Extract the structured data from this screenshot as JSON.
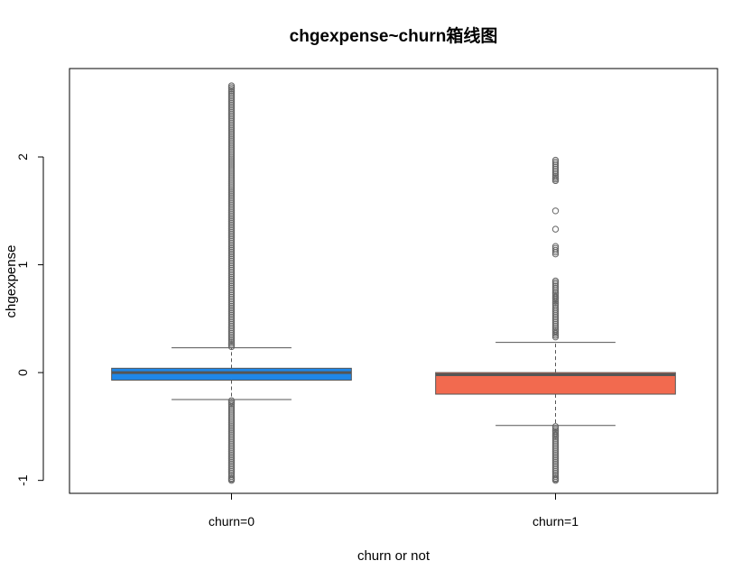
{
  "chart_data": {
    "type": "boxplot",
    "title": "chgexpense~churn箱线图",
    "xlabel": "churn or not",
    "ylabel": "chgexpense",
    "categories": [
      "churn=0",
      "churn=1"
    ],
    "ylim": [
      -1.12,
      2.82
    ],
    "yticks": [
      -1,
      0,
      1,
      2
    ],
    "grid": false,
    "legend": "none",
    "boxes": [
      {
        "label": "churn=0",
        "color": "#1f87e8",
        "q1": -0.07,
        "median": 0.0,
        "q3": 0.04,
        "whisker_low": -0.25,
        "whisker_high": 0.23,
        "outliers_high": [
          0.24,
          0.3,
          0.4,
          0.5,
          0.6,
          0.7,
          0.8,
          0.9,
          1.0,
          1.1,
          1.2,
          1.3,
          1.4,
          1.5,
          1.6,
          1.7,
          1.8,
          1.9,
          2.0,
          2.05,
          2.1,
          2.15,
          2.2,
          2.25,
          2.3,
          2.35,
          2.4,
          2.45,
          2.5,
          2.55,
          2.6,
          2.66
        ],
        "outliers_low": [
          -0.26,
          -0.3,
          -0.4,
          -0.5,
          -0.6,
          -0.7,
          -0.8,
          -0.85,
          -0.9,
          -0.95,
          -0.98,
          -1.0
        ]
      },
      {
        "label": "churn=1",
        "color": "#f26a4f",
        "q1": -0.2,
        "median": -0.02,
        "q3": 0.0,
        "whisker_low": -0.49,
        "whisker_high": 0.28,
        "outliers_high": [
          0.33,
          0.36,
          0.4,
          0.45,
          0.5,
          0.55,
          0.62,
          0.65,
          0.68,
          0.72,
          0.75,
          0.82,
          0.85,
          1.1,
          1.17,
          1.33,
          1.5,
          1.78,
          1.82,
          1.92,
          1.97
        ],
        "outliers_low": [
          -0.5,
          -0.53,
          -0.56,
          -0.6,
          -0.65,
          -0.7,
          -0.75,
          -0.8,
          -0.85,
          -0.9,
          -0.95,
          -0.98,
          -1.0
        ]
      }
    ]
  }
}
